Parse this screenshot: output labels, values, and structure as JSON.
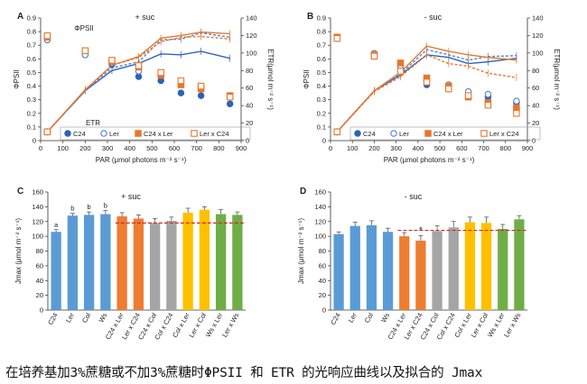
{
  "caption": "在培养基加3%蔗糖或不加3%蔗糖时ΦPSII 和 ETR 的光响应曲线以及拟合的 Jmax",
  "colors": {
    "C24": "#2e62b8",
    "Ler": "#4a86d0",
    "C24xLer": "#e8762c",
    "LerxC24": "#e8762c",
    "bar_C24": "#5b9bd5",
    "bar_Ler": "#5b9bd5",
    "bar_Col": "#5b9bd5",
    "bar_Ws": "#5b9bd5",
    "bar_C24xLer": "#ed7d31",
    "bar_LerxC24": "#ed7d31",
    "bar_C24xCol": "#a5a5a5",
    "bar_ColxC24": "#a5a5a5",
    "bar_ColxLer": "#ffc000",
    "bar_LerxCol": "#ffc000",
    "bar_WsxLer": "#70ad47",
    "bar_LerxWs": "#70ad47",
    "refline": "#d62728",
    "axis": "#333333",
    "text": "#222222"
  },
  "chart_data": [
    {
      "id": "A",
      "panel_label": "A",
      "type": "line",
      "title": "+ suc",
      "xlabel": "PAR (μmol photons m⁻² s⁻¹)",
      "ylabel_left": "ΦPSII",
      "ylabel_right": "ETR(μmol m⁻² s⁻¹)",
      "xlim": [
        0,
        900
      ],
      "ylim_left": [
        0,
        0.9
      ],
      "ylim_right": [
        0,
        140
      ],
      "xticks": [
        0,
        100,
        200,
        300,
        400,
        500,
        600,
        700,
        800,
        900
      ],
      "yticks_left": [
        0,
        0.1,
        0.2,
        0.3,
        0.4,
        0.5,
        0.6,
        0.7,
        0.8,
        0.9
      ],
      "yticks_right": [
        0,
        20,
        40,
        60,
        80,
        100,
        120,
        140
      ],
      "annotations": [
        "ΦPSII",
        "ETR"
      ],
      "x": [
        30,
        200,
        320,
        440,
        540,
        630,
        720,
        850
      ],
      "legend": [
        "C24",
        "Ler",
        "C24 x Ler",
        "Ler x C24"
      ],
      "phi_series": [
        {
          "name": "C24",
          "values": [
            0.74,
            0.63,
            0.56,
            0.47,
            0.44,
            0.35,
            0.33,
            0.27
          ]
        },
        {
          "name": "Ler",
          "values": [
            0.74,
            0.63,
            0.57,
            0.51,
            0.48,
            0.43,
            0.39,
            0.33
          ]
        },
        {
          "name": "C24 x Ler",
          "values": [
            0.76,
            0.66,
            0.58,
            0.54,
            0.48,
            0.41,
            0.38,
            0.33
          ]
        },
        {
          "name": "Ler x C24",
          "values": [
            0.77,
            0.66,
            0.59,
            0.55,
            0.5,
            0.44,
            0.4,
            0.32
          ]
        }
      ],
      "etr_series": [
        {
          "name": "C24",
          "values": [
            10,
            57,
            80,
            88,
            99,
            98,
            102,
            94
          ]
        },
        {
          "name": "Ler",
          "values": [
            10,
            58,
            83,
            90,
            115,
            116,
            123,
            118
          ]
        },
        {
          "name": "C24 x Ler",
          "values": [
            10,
            58,
            86,
            96,
            117,
            120,
            124,
            122
          ]
        },
        {
          "name": "Ler x C24",
          "values": [
            10,
            58,
            86,
            95,
            113,
            118,
            119,
            116
          ]
        }
      ]
    },
    {
      "id": "B",
      "panel_label": "B",
      "type": "line",
      "title": "- suc",
      "xlabel": "PAR (μmol photons m⁻² s⁻¹)",
      "ylabel_left": "ΦPSII",
      "ylabel_right": "ETR(μmol m⁻² s⁻¹)",
      "xlim": [
        0,
        900
      ],
      "ylim_left": [
        0,
        0.9
      ],
      "ylim_right": [
        0,
        140
      ],
      "xticks": [
        0,
        100,
        200,
        300,
        400,
        500,
        600,
        700,
        800,
        900
      ],
      "yticks_left": [
        0,
        0.1,
        0.2,
        0.3,
        0.4,
        0.5,
        0.6,
        0.7,
        0.8,
        0.9
      ],
      "yticks_right": [
        0,
        20,
        40,
        60,
        80,
        100,
        120,
        140
      ],
      "x": [
        30,
        200,
        320,
        440,
        540,
        630,
        720,
        850
      ],
      "legend": [
        "C24",
        "Ler",
        "C24 x Ler",
        "Ler x C24"
      ],
      "phi_series": [
        {
          "name": "C24",
          "values": [
            0.75,
            0.64,
            0.55,
            0.41,
            0.38,
            0.33,
            0.32,
            0.28
          ]
        },
        {
          "name": "Ler",
          "values": [
            0.75,
            0.64,
            0.55,
            0.44,
            0.41,
            0.36,
            0.34,
            0.29
          ]
        },
        {
          "name": "C24 x Ler",
          "values": [
            0.76,
            0.63,
            0.57,
            0.46,
            0.4,
            0.32,
            0.28,
            0.24
          ]
        },
        {
          "name": "Ler x C24",
          "values": [
            0.75,
            0.62,
            0.51,
            0.43,
            0.38,
            0.33,
            0.26,
            0.2
          ]
        }
      ],
      "etr_series": [
        {
          "name": "C24",
          "values": [
            10,
            57,
            75,
            98,
            95,
            88,
            90,
            94
          ]
        },
        {
          "name": "Ler",
          "values": [
            10,
            57,
            76,
            104,
            98,
            92,
            96,
            97
          ]
        },
        {
          "name": "C24 x Ler",
          "values": [
            10,
            57,
            78,
            108,
            102,
            98,
            95,
            92
          ]
        },
        {
          "name": "Ler x C24",
          "values": [
            10,
            56,
            73,
            98,
            88,
            85,
            77,
            72
          ]
        }
      ]
    },
    {
      "id": "C",
      "panel_label": "C",
      "type": "bar",
      "title": "+ suc",
      "ylabel": "Jmax (μmol m⁻² s⁻¹)",
      "ylim": [
        0,
        160
      ],
      "yticks": [
        0,
        20,
        40,
        60,
        80,
        100,
        120,
        140,
        160
      ],
      "categories": [
        "C24",
        "Ler",
        "Col",
        "Ws",
        "C24 x Ler",
        "Ler x C24",
        "C24 x Col",
        "Col x C24",
        "Col x Ler",
        "Ler x Col",
        "Ws x Ler",
        "Ler x Ws"
      ],
      "values": [
        106,
        128,
        129,
        130,
        127,
        124,
        118,
        121,
        132,
        136,
        130,
        129
      ],
      "errors": [
        3,
        3,
        4,
        5,
        5,
        5,
        6,
        5,
        6,
        4,
        6,
        4
      ],
      "letters": [
        "a",
        "b",
        "b",
        "b",
        "",
        "",
        "",
        "",
        "",
        "",
        "",
        ""
      ],
      "refline": 118,
      "refline_range": [
        4,
        11
      ]
    },
    {
      "id": "D",
      "panel_label": "D",
      "type": "bar",
      "title": "- suc",
      "ylabel": "Jmax (μmol m⁻² s⁻¹)",
      "ylim": [
        0,
        160
      ],
      "yticks": [
        0,
        20,
        40,
        60,
        80,
        100,
        120,
        140,
        160
      ],
      "categories": [
        "C24",
        "Ler",
        "Col",
        "Ws",
        "C24 x Ler",
        "Ler x C24",
        "C24 x Col",
        "Col x C24",
        "Col x Ler",
        "Ler x Col",
        "Ws x Ler",
        "Ler x Ws"
      ],
      "values": [
        103,
        114,
        115,
        106,
        100,
        94,
        107,
        112,
        119,
        118,
        110,
        123
      ],
      "errors": [
        3,
        5,
        6,
        5,
        5,
        7,
        7,
        8,
        7,
        8,
        6,
        5
      ],
      "letters": [
        "",
        "",
        "",
        "",
        "",
        "*",
        "",
        "",
        "",
        "",
        "",
        ""
      ],
      "refline": 108,
      "refline_range": [
        4,
        11
      ]
    }
  ]
}
